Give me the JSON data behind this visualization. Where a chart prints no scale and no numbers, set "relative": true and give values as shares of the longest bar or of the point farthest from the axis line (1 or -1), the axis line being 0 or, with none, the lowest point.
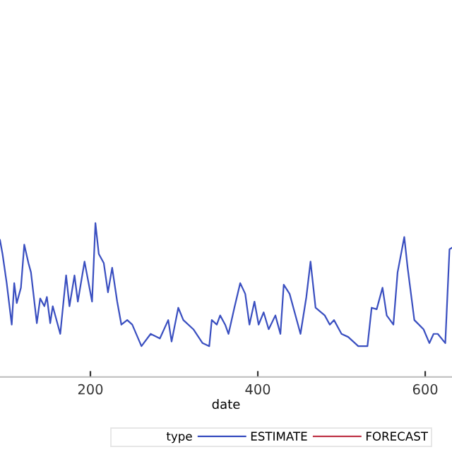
{
  "chart_data": {
    "type": "line",
    "relative": true,
    "xlabel": "date",
    "legend_title": "type",
    "legend": "bottom",
    "grid": false,
    "xlim": [
      92,
      632
    ],
    "xticks": [
      200,
      400,
      600
    ],
    "series": [
      {
        "name": "ESTIMATE",
        "color": "#3a4fc0",
        "x": [
          92,
          95,
          100,
          106,
          109,
          112,
          117,
          121,
          126,
          129,
          136,
          140,
          145,
          148,
          152,
          155,
          164,
          171,
          175,
          181,
          185,
          193,
          202,
          206,
          210,
          216,
          221,
          226,
          232,
          237,
          244,
          250,
          261,
          272,
          283,
          293,
          297,
          305,
          311,
          323,
          334,
          342,
          345,
          351,
          355,
          361,
          365,
          372,
          379,
          385,
          390,
          396,
          401,
          407,
          413,
          421,
          427,
          431,
          438,
          444,
          451,
          458,
          463,
          469,
          480,
          486,
          491,
          500,
          508,
          520,
          531,
          536,
          542,
          549,
          554,
          562,
          567,
          575,
          579,
          587,
          598,
          605,
          610,
          615,
          624,
          629,
          632
        ],
        "values": [
          0.89,
          0.8,
          0.61,
          0.34,
          0.61,
          0.48,
          0.58,
          0.86,
          0.74,
          0.68,
          0.35,
          0.51,
          0.46,
          0.52,
          0.35,
          0.46,
          0.28,
          0.66,
          0.46,
          0.66,
          0.49,
          0.75,
          0.49,
          1.0,
          0.8,
          0.74,
          0.55,
          0.71,
          0.49,
          0.34,
          0.37,
          0.34,
          0.2,
          0.28,
          0.25,
          0.37,
          0.23,
          0.45,
          0.37,
          0.31,
          0.22,
          0.2,
          0.37,
          0.34,
          0.4,
          0.34,
          0.28,
          0.45,
          0.61,
          0.54,
          0.34,
          0.49,
          0.34,
          0.42,
          0.31,
          0.4,
          0.28,
          0.6,
          0.54,
          0.42,
          0.28,
          0.52,
          0.75,
          0.45,
          0.4,
          0.34,
          0.37,
          0.28,
          0.26,
          0.2,
          0.2,
          0.45,
          0.44,
          0.58,
          0.4,
          0.34,
          0.68,
          0.91,
          0.71,
          0.37,
          0.31,
          0.22,
          0.28,
          0.28,
          0.22,
          0.83,
          0.84
        ]
      },
      {
        "name": "FORECAST",
        "color": "#c0394b"
      }
    ]
  }
}
